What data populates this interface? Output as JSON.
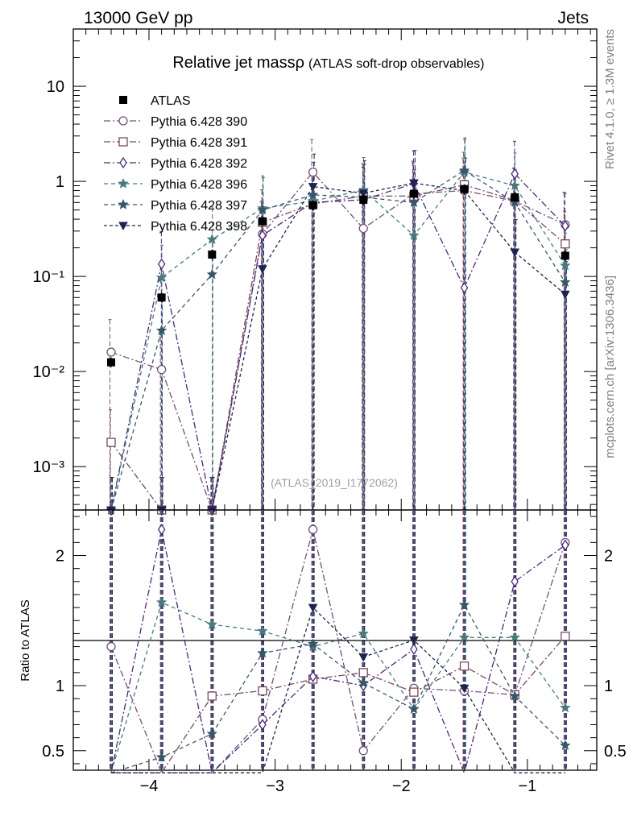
{
  "header": {
    "energy_label": "13000 GeV pp",
    "category_label": "Jets"
  },
  "side_labels": {
    "rivet": "Rivet 4.1.0, ≥ 1.3M events",
    "mcplots": "mcplots.cern.ch [arXiv:1306.3436]"
  },
  "chart_data": {
    "type": "line",
    "title": "Relative jet massρ",
    "subtitle": "(ATLAS soft-drop observables)",
    "watermark": "(ATLAS_2019_I1772062)",
    "xlabel": "",
    "ylabel": "",
    "ratio_ylabel": "Ratio to ATLAS",
    "xlim": [
      -4.6,
      -0.45
    ],
    "ylim": [
      0.00035,
      40
    ],
    "ylog": true,
    "ratio_ylim": [
      0.35,
      2.35
    ],
    "x": [
      -4.3,
      -3.9,
      -3.5,
      -3.1,
      -2.7,
      -2.3,
      -1.9,
      -1.5,
      -1.1,
      -0.7
    ],
    "x_ticks": [
      -4,
      -3,
      -2,
      -1
    ],
    "x_tick_labels": [
      "−4",
      "−3",
      "−2",
      "−1"
    ],
    "y_ticks": [
      0.001,
      0.01,
      0.1,
      1,
      10
    ],
    "y_tick_labels": [
      "10⁻³",
      "10⁻²",
      "10⁻¹",
      "1",
      "10"
    ],
    "ratio_ticks": [
      0.5,
      1,
      2
    ],
    "ratio_tick_labels": [
      "0.5",
      "1",
      "2"
    ],
    "legend_position": "top-left",
    "data": {
      "name": "ATLAS",
      "values": [
        0.0125,
        0.06,
        0.17,
        0.38,
        0.56,
        0.64,
        0.74,
        0.83,
        0.68,
        0.165
      ]
    },
    "series": [
      {
        "name": "Pythia 6.428 390",
        "color": "#74507a",
        "marker": "circle",
        "dash": "8,3,2,3",
        "values": [
          0.016,
          0.0105,
          0.00035,
          0.28,
          1.25,
          0.32,
          0.74,
          0.8,
          0.62,
          0.35
        ]
      },
      {
        "name": "Pythia 6.428 391",
        "color": "#7a4a5c",
        "marker": "square",
        "dash": "8,3,2,3",
        "values": [
          0.0018,
          0.00035,
          0.00035,
          0.37,
          0.58,
          0.7,
          0.7,
          0.92,
          0.63,
          0.22
        ]
      },
      {
        "name": "Pythia 6.428 392",
        "color": "#4a2a78",
        "marker": "diamond",
        "dash": "8,3,2,3",
        "values": [
          0.00035,
          0.135,
          0.00035,
          0.27,
          0.6,
          0.64,
          0.95,
          0.076,
          1.2,
          0.34
        ]
      },
      {
        "name": "Pythia 6.428 396",
        "color": "#4a7a7e",
        "marker": "star",
        "dash": "5,4",
        "values": [
          0.00035,
          0.097,
          0.245,
          0.52,
          0.62,
          0.81,
          0.27,
          1.25,
          0.9,
          0.13
        ]
      },
      {
        "name": "Pythia 6.428 397",
        "color": "#38566a",
        "marker": "star",
        "dash": "5,4",
        "values": [
          0.00035,
          0.027,
          0.105,
          0.5,
          0.72,
          0.68,
          0.6,
          1.3,
          0.6,
          0.087
        ]
      },
      {
        "name": "Pythia 6.428 398",
        "color": "#1c2450",
        "marker": "triangle-down",
        "dash": "4,3",
        "values": [
          0.00035,
          0.00035,
          0.00035,
          0.12,
          0.88,
          0.75,
          0.96,
          0.8,
          0.18,
          0.065
        ]
      }
    ],
    "ratio_series": [
      {
        "name": "Pythia 6.428 390",
        "values": [
          1.3,
          0.3,
          0.3,
          0.74,
          2.2,
          0.5,
          0.98,
          0.96,
          0.93,
          2.1
        ]
      },
      {
        "name": "Pythia 6.428 391",
        "values": [
          0.3,
          0.3,
          0.92,
          0.96,
          1.05,
          1.1,
          0.95,
          1.15,
          0.93,
          1.38
        ]
      },
      {
        "name": "Pythia 6.428 392",
        "values": [
          0.3,
          2.2,
          0.3,
          0.7,
          1.07,
          1.0,
          1.28,
          0.3,
          1.8,
          2.08
        ]
      },
      {
        "name": "Pythia 6.428 396",
        "values": [
          0.3,
          1.64,
          1.47,
          1.42,
          1.3,
          1.4,
          0.82,
          1.37,
          1.37,
          0.83
        ]
      },
      {
        "name": "Pythia 6.428 397",
        "values": [
          0.3,
          0.45,
          0.63,
          1.25,
          1.32,
          1.02,
          0.82,
          1.62,
          0.92,
          0.54
        ]
      },
      {
        "name": "Pythia 6.428 398",
        "values": [
          0.3,
          0.3,
          0.3,
          0.3,
          1.6,
          1.22,
          1.35,
          0.98,
          0.3,
          0.3
        ]
      }
    ]
  }
}
